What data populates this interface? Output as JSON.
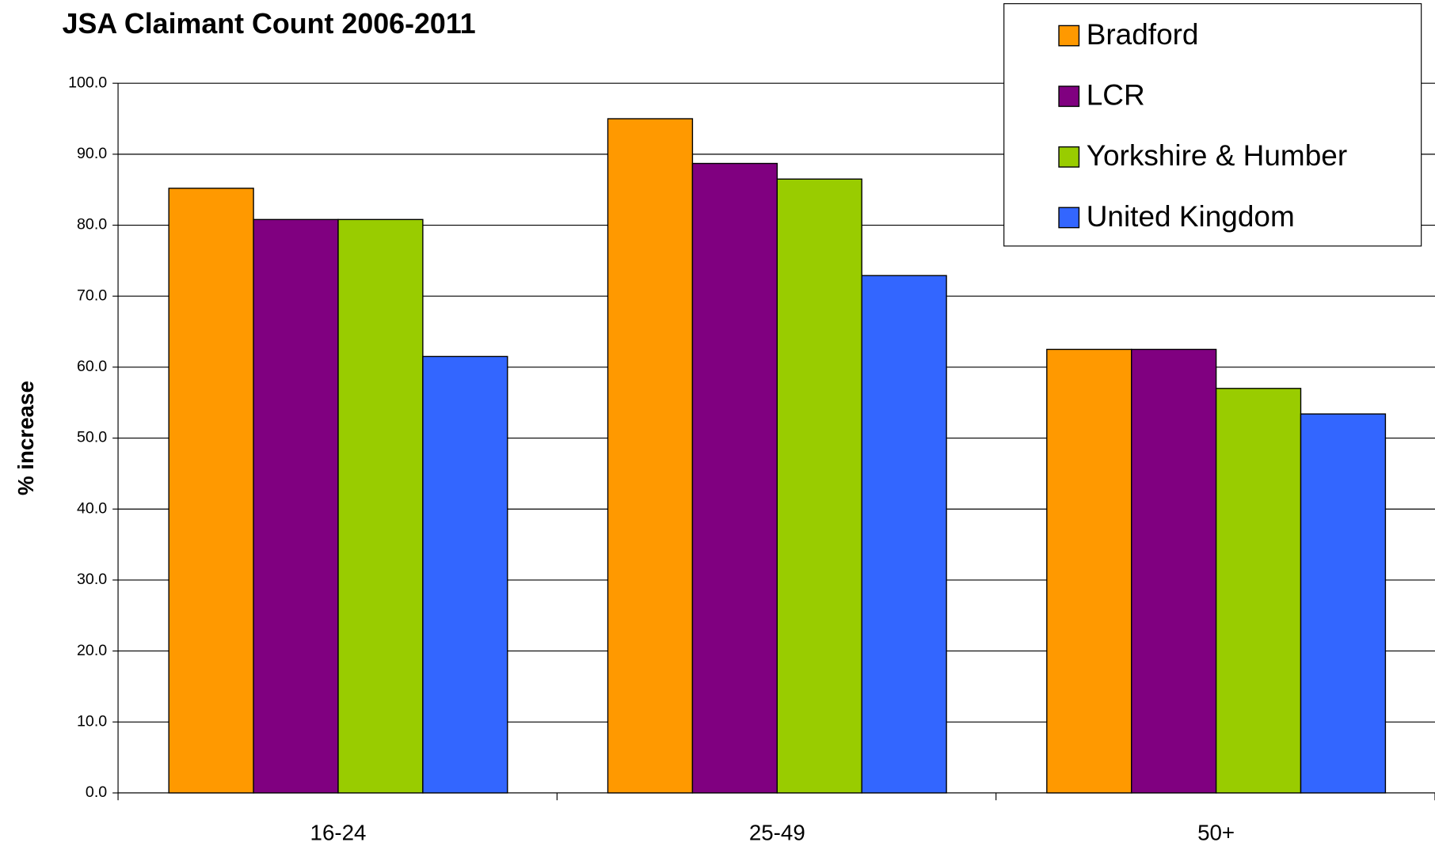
{
  "chart_data": {
    "type": "bar",
    "title": "JSA Claimant Count 2006-2011",
    "y_label": "% increase",
    "categories": [
      "16-24",
      "25-49",
      "50+"
    ],
    "series": [
      {
        "name": "Bradford",
        "color": "#ff9900",
        "values": [
          85.2,
          95.0,
          62.5
        ]
      },
      {
        "name": "LCR",
        "color": "#800080",
        "values": [
          80.8,
          88.7,
          62.5
        ]
      },
      {
        "name": "Yorkshire & Humber",
        "color": "#99cc00",
        "values": [
          80.8,
          86.5,
          57.0
        ]
      },
      {
        "name": "United Kingdom",
        "color": "#3366ff",
        "values": [
          61.5,
          72.9,
          53.4
        ]
      }
    ],
    "ylim": [
      0,
      100
    ],
    "yticks": [
      {
        "value": 0,
        "label": "0.0"
      },
      {
        "value": 10,
        "label": "10.0"
      },
      {
        "value": 20,
        "label": "20.0"
      },
      {
        "value": 30,
        "label": "30.0"
      },
      {
        "value": 40,
        "label": "40.0"
      },
      {
        "value": 50,
        "label": "50.0"
      },
      {
        "value": 60,
        "label": "60.0"
      },
      {
        "value": 70,
        "label": "70.0"
      },
      {
        "value": 80,
        "label": "80.0"
      },
      {
        "value": 90,
        "label": "90.0"
      },
      {
        "value": 100,
        "label": "100.0"
      }
    ],
    "grid": true,
    "legend": "top-right"
  }
}
